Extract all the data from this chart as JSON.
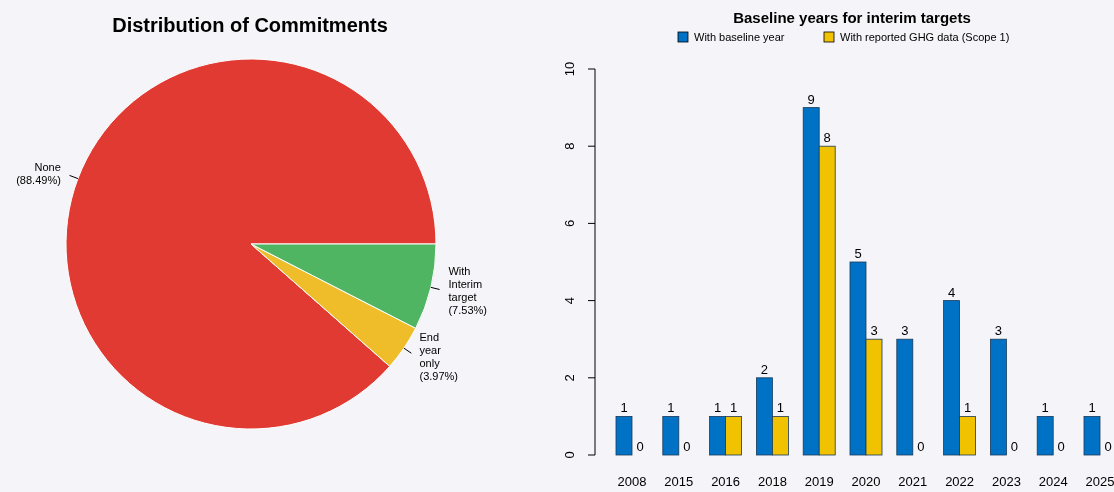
{
  "chart_data": [
    {
      "type": "pie",
      "title": "Distribution of Commitments",
      "categories": [
        "None",
        "End year only",
        "With Interim target"
      ],
      "values": [
        88.49,
        3.97,
        7.53
      ],
      "colors": [
        "#e03a33",
        "#f0bd2a",
        "#4fb563"
      ],
      "value_labels": [
        "(88.49%)",
        "(3.97%)",
        "(7.53%)"
      ]
    },
    {
      "type": "bar",
      "title": "Baseline years for interim targets",
      "categories": [
        "2008",
        "2015",
        "2016",
        "2018",
        "2019",
        "2020",
        "2021",
        "2022",
        "2023",
        "2024",
        "2025"
      ],
      "series": [
        {
          "name": "With baseline year",
          "color": "#0072c6",
          "values": [
            1,
            1,
            1,
            2,
            9,
            5,
            3,
            4,
            3,
            1,
            1
          ]
        },
        {
          "name": "With reported GHG data (Scope 1)",
          "color": "#f0c200",
          "values": [
            0,
            0,
            1,
            1,
            8,
            3,
            0,
            1,
            0,
            0,
            0
          ]
        }
      ],
      "ylim": [
        0,
        10
      ],
      "yticks": [
        0,
        2,
        4,
        6,
        8,
        10
      ],
      "data_labels": true,
      "legend": "top"
    }
  ]
}
